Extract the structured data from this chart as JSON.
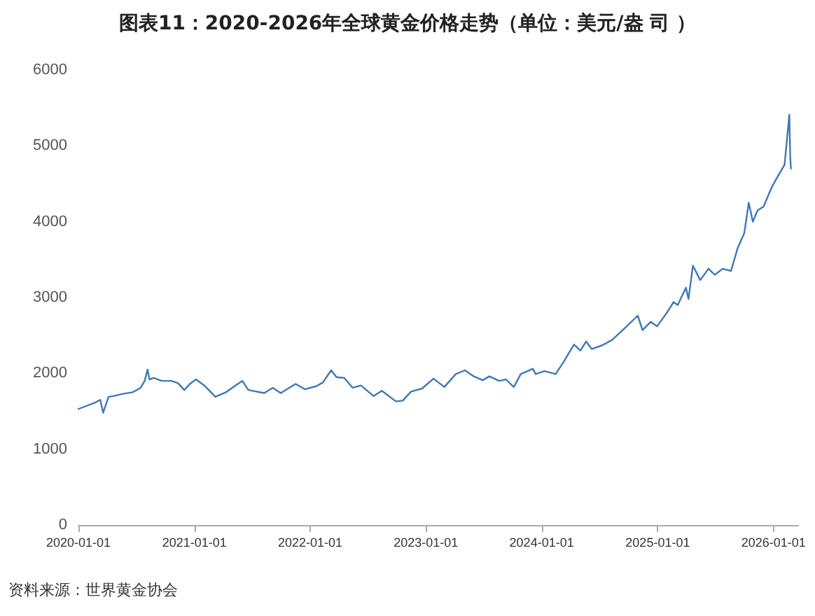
{
  "chart_data": {
    "type": "line",
    "title": "图表11：2020-2026年全球黄金价格走势（单位：美元/盎 司 ）",
    "annotations": [
      "资料来源：世界黄金协会"
    ],
    "x": [
      "2020-01-01",
      "2020-01-20",
      "2020-02-20",
      "2020-03-10",
      "2020-03-19",
      "2020-04-05",
      "2020-04-20",
      "2020-05-20",
      "2020-06-20",
      "2020-07-15",
      "2020-07-28",
      "2020-08-06",
      "2020-08-12",
      "2020-08-25",
      "2020-09-20",
      "2020-10-20",
      "2020-11-10",
      "2020-11-30",
      "2020-12-20",
      "2021-01-06",
      "2021-02-01",
      "2021-03-08",
      "2021-04-10",
      "2021-05-10",
      "2021-06-01",
      "2021-06-20",
      "2021-08-09",
      "2021-09-05",
      "2021-09-30",
      "2021-11-16",
      "2021-12-15",
      "2022-01-20",
      "2022-02-10",
      "2022-03-08",
      "2022-03-25",
      "2022-04-18",
      "2022-05-15",
      "2022-06-10",
      "2022-07-20",
      "2022-08-15",
      "2022-09-28",
      "2022-10-20",
      "2022-11-15",
      "2022-12-20",
      "2023-01-25",
      "2023-02-28",
      "2023-04-05",
      "2023-05-04",
      "2023-06-01",
      "2023-06-29",
      "2023-07-20",
      "2023-08-20",
      "2023-09-10",
      "2023-10-05",
      "2023-10-27",
      "2023-12-04",
      "2023-12-13",
      "2024-01-10",
      "2024-02-14",
      "2024-03-10",
      "2024-04-12",
      "2024-05-02",
      "2024-05-20",
      "2024-06-07",
      "2024-07-10",
      "2024-08-10",
      "2024-09-20",
      "2024-10-30",
      "2024-11-14",
      "2024-12-10",
      "2024-12-30",
      "2025-01-30",
      "2025-02-20",
      "2025-03-05",
      "2025-03-31",
      "2025-04-08",
      "2025-04-22",
      "2025-05-15",
      "2025-06-10",
      "2025-06-30",
      "2025-07-25",
      "2025-08-20",
      "2025-09-10",
      "2025-10-01",
      "2025-10-15",
      "2025-10-28",
      "2025-11-12",
      "2025-12-01",
      "2025-12-26",
      "2026-01-15",
      "2026-02-05",
      "2026-02-20",
      "2026-02-23",
      "2026-02-25"
    ],
    "values": [
      1530,
      1560,
      1610,
      1650,
      1480,
      1690,
      1700,
      1730,
      1750,
      1810,
      1900,
      2050,
      1920,
      1940,
      1900,
      1900,
      1870,
      1780,
      1870,
      1920,
      1840,
      1690,
      1750,
      1840,
      1900,
      1780,
      1740,
      1810,
      1740,
      1860,
      1790,
      1830,
      1880,
      2040,
      1950,
      1940,
      1810,
      1840,
      1700,
      1770,
      1630,
      1640,
      1760,
      1800,
      1930,
      1820,
      1990,
      2040,
      1960,
      1910,
      1960,
      1900,
      1920,
      1820,
      1990,
      2060,
      1990,
      2030,
      1990,
      2150,
      2380,
      2300,
      2420,
      2320,
      2370,
      2440,
      2600,
      2760,
      2570,
      2680,
      2620,
      2800,
      2940,
      2900,
      3130,
      2980,
      3420,
      3230,
      3380,
      3300,
      3380,
      3350,
      3650,
      3850,
      4250,
      4000,
      4150,
      4200,
      4450,
      4600,
      4750,
      5410,
      4850,
      4700
    ],
    "color": "#3f78b8",
    "marker": "none",
    "line_style": "solid",
    "xlim": [
      "2020-01-01",
      "2026-03-20"
    ],
    "xticks": [
      "2020-01-01",
      "2021-01-01",
      "2022-01-01",
      "2023-01-01",
      "2024-01-01",
      "2025-01-01",
      "2026-01-01"
    ],
    "ylim": [
      0,
      6000
    ],
    "yticks": [
      0,
      1000,
      2000,
      3000,
      4000,
      5000,
      6000
    ]
  }
}
